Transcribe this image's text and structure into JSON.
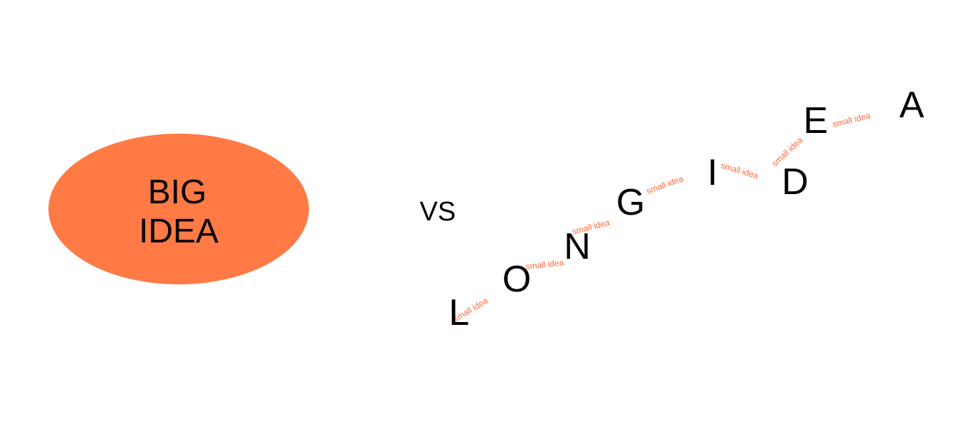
{
  "colors": {
    "accent": "#ff7a45",
    "small_text": "#ff6a3a",
    "text": "#000000",
    "background": "#ffffff"
  },
  "big_idea": {
    "line1": "BIG",
    "line2": "IDEA"
  },
  "vs_label": "VS",
  "long_idea": {
    "letters": [
      "L",
      "O",
      "N",
      "G",
      "I",
      "D",
      "E",
      "A"
    ],
    "connector_label": "small idea"
  }
}
